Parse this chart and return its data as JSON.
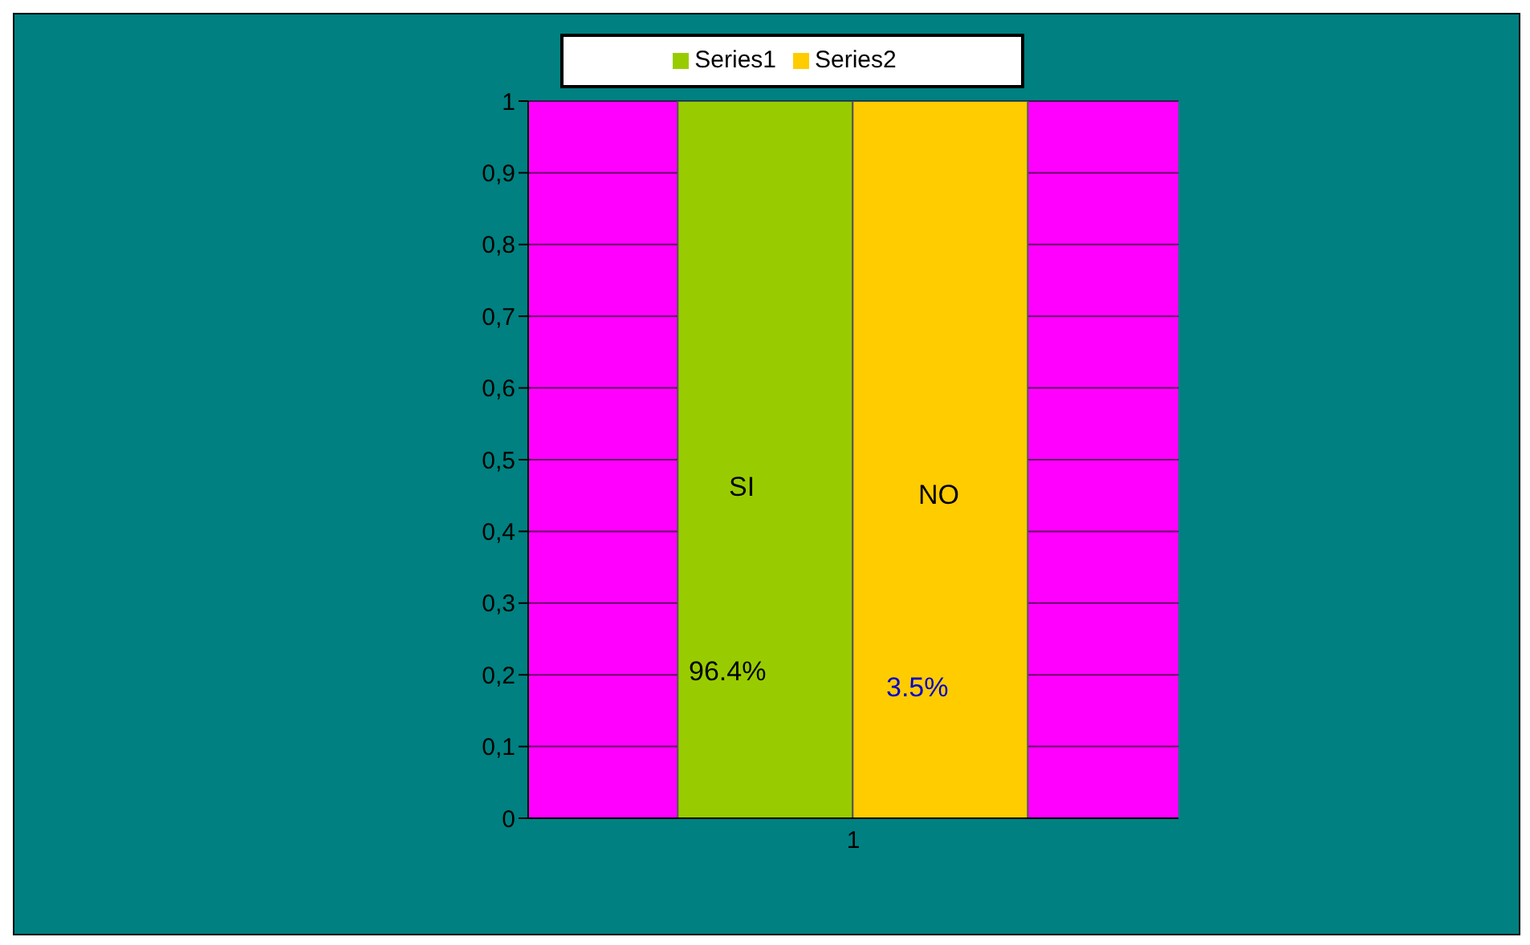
{
  "chart_data": {
    "type": "bar",
    "categories": [
      "1"
    ],
    "series": [
      {
        "name": "Series1",
        "color": "#99cc00",
        "values": [
          1
        ]
      },
      {
        "name": "Series2",
        "color": "#ffcc00",
        "values": [
          1
        ]
      }
    ],
    "ylim": [
      0,
      1
    ],
    "yticks": [
      0,
      {
        "value": 0.1,
        "label": "0,1"
      },
      {
        "value": 0.2,
        "label": "0,2"
      },
      {
        "value": 0.3,
        "label": "0,3"
      },
      {
        "value": 0.4,
        "label": "0,4"
      },
      {
        "value": 0.5,
        "label": "0,5"
      },
      {
        "value": 0.6,
        "label": "0,6"
      },
      {
        "value": 0.7,
        "label": "0,7"
      },
      {
        "value": 0.8,
        "label": "0,8"
      },
      {
        "value": 0.9,
        "label": "0,9"
      },
      1
    ],
    "grid": "y",
    "legend": "top",
    "annotations": [
      "SI",
      "NO",
      "96.4%",
      "3.5%"
    ]
  }
}
